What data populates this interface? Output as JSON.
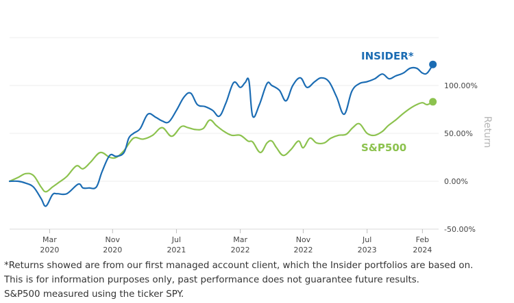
{
  "chart_data": {
    "type": "line",
    "title": "",
    "xlabel": "",
    "ylabel": "Return",
    "ylim": [
      -50,
      150
    ],
    "yticks": [
      {
        "value": -50,
        "label": "-50.00%"
      },
      {
        "value": 0,
        "label": "0.00%"
      },
      {
        "value": 50,
        "label": "50.00%"
      },
      {
        "value": 100,
        "label": "100.00%"
      }
    ],
    "xrange": [
      2019.75,
      2024.25
    ],
    "xticks": [
      {
        "value": 2020.17,
        "line1": "Mar",
        "line2": "2020"
      },
      {
        "value": 2020.83,
        "line1": "Nov",
        "line2": "2020"
      },
      {
        "value": 2021.5,
        "line1": "Jul",
        "line2": "2021"
      },
      {
        "value": 2022.17,
        "line1": "Mar",
        "line2": "2022"
      },
      {
        "value": 2022.83,
        "line1": "Nov",
        "line2": "2022"
      },
      {
        "value": 2023.5,
        "line1": "Jul",
        "line2": "2023"
      },
      {
        "value": 2024.08,
        "line1": "Feb",
        "line2": "2024"
      }
    ],
    "series": [
      {
        "name": "INSIDER*",
        "color": "#1b6cb3",
        "x": [
          2019.75,
          2019.84,
          2019.92,
          2020.0,
          2020.08,
          2020.13,
          2020.2,
          2020.25,
          2020.35,
          2020.47,
          2020.52,
          2020.58,
          2020.66,
          2020.72,
          2020.8,
          2020.87,
          2020.95,
          2021.0,
          2021.05,
          2021.12,
          2021.2,
          2021.28,
          2021.35,
          2021.42,
          2021.5,
          2021.58,
          2021.65,
          2021.72,
          2021.8,
          2021.88,
          2021.95,
          2022.02,
          2022.1,
          2022.17,
          2022.22,
          2022.26,
          2022.3,
          2022.37,
          2022.45,
          2022.5,
          2022.58,
          2022.65,
          2022.72,
          2022.8,
          2022.87,
          2022.95,
          2023.02,
          2023.1,
          2023.18,
          2023.26,
          2023.34,
          2023.42,
          2023.5,
          2023.58,
          2023.66,
          2023.73,
          2023.8,
          2023.88,
          2023.95,
          2024.02,
          2024.08,
          2024.13,
          2024.19
        ],
        "y": [
          0,
          0,
          -2,
          -6,
          -18,
          -26,
          -14,
          -13,
          -13,
          -3,
          -7,
          -7,
          -6,
          10,
          27,
          26,
          30,
          45,
          50,
          55,
          70,
          67,
          63,
          62,
          74,
          88,
          92,
          80,
          78,
          74,
          68,
          82,
          103,
          98,
          103,
          105,
          68,
          80,
          102,
          100,
          95,
          84,
          100,
          108,
          98,
          104,
          108,
          104,
          88,
          70,
          94,
          102,
          104,
          107,
          112,
          107,
          110,
          113,
          118,
          118,
          113,
          113,
          122
        ]
      },
      {
        "name": "S&P500",
        "color": "#8cc24e",
        "x": [
          2019.75,
          2019.84,
          2019.92,
          2020.0,
          2020.08,
          2020.13,
          2020.2,
          2020.27,
          2020.35,
          2020.45,
          2020.52,
          2020.6,
          2020.7,
          2020.8,
          2020.87,
          2020.95,
          2021.05,
          2021.15,
          2021.25,
          2021.35,
          2021.45,
          2021.55,
          2021.62,
          2021.7,
          2021.78,
          2021.85,
          2021.92,
          2022.0,
          2022.08,
          2022.17,
          2022.25,
          2022.3,
          2022.38,
          2022.45,
          2022.5,
          2022.55,
          2022.62,
          2022.7,
          2022.78,
          2022.83,
          2022.9,
          2022.97,
          2023.05,
          2023.12,
          2023.2,
          2023.28,
          2023.35,
          2023.42,
          2023.5,
          2023.58,
          2023.66,
          2023.72,
          2023.8,
          2023.87,
          2023.95,
          2024.02,
          2024.08,
          2024.13,
          2024.19
        ],
        "y": [
          0,
          4,
          8,
          6,
          -6,
          -11,
          -6,
          -1,
          5,
          16,
          13,
          20,
          30,
          25,
          25,
          32,
          45,
          44,
          48,
          56,
          47,
          57,
          56,
          54,
          55,
          64,
          58,
          52,
          48,
          48,
          42,
          41,
          30,
          40,
          42,
          35,
          27,
          33,
          42,
          35,
          45,
          40,
          40,
          45,
          48,
          49,
          56,
          60,
          50,
          48,
          52,
          58,
          64,
          70,
          76,
          80,
          82,
          80,
          83
        ]
      }
    ],
    "annotations": [
      {
        "series": "INSIDER*",
        "text": "INSIDER*"
      },
      {
        "series": "S&P500",
        "text": "S&P500"
      }
    ]
  },
  "footnote": {
    "line1": "*Returns showed are from our first managed account client, which the Insider portfolios are based on.",
    "line2": "This is for information purposes only, past performance does not guarantee future results.",
    "line3": "S&P500 measured using the ticker SPY."
  }
}
